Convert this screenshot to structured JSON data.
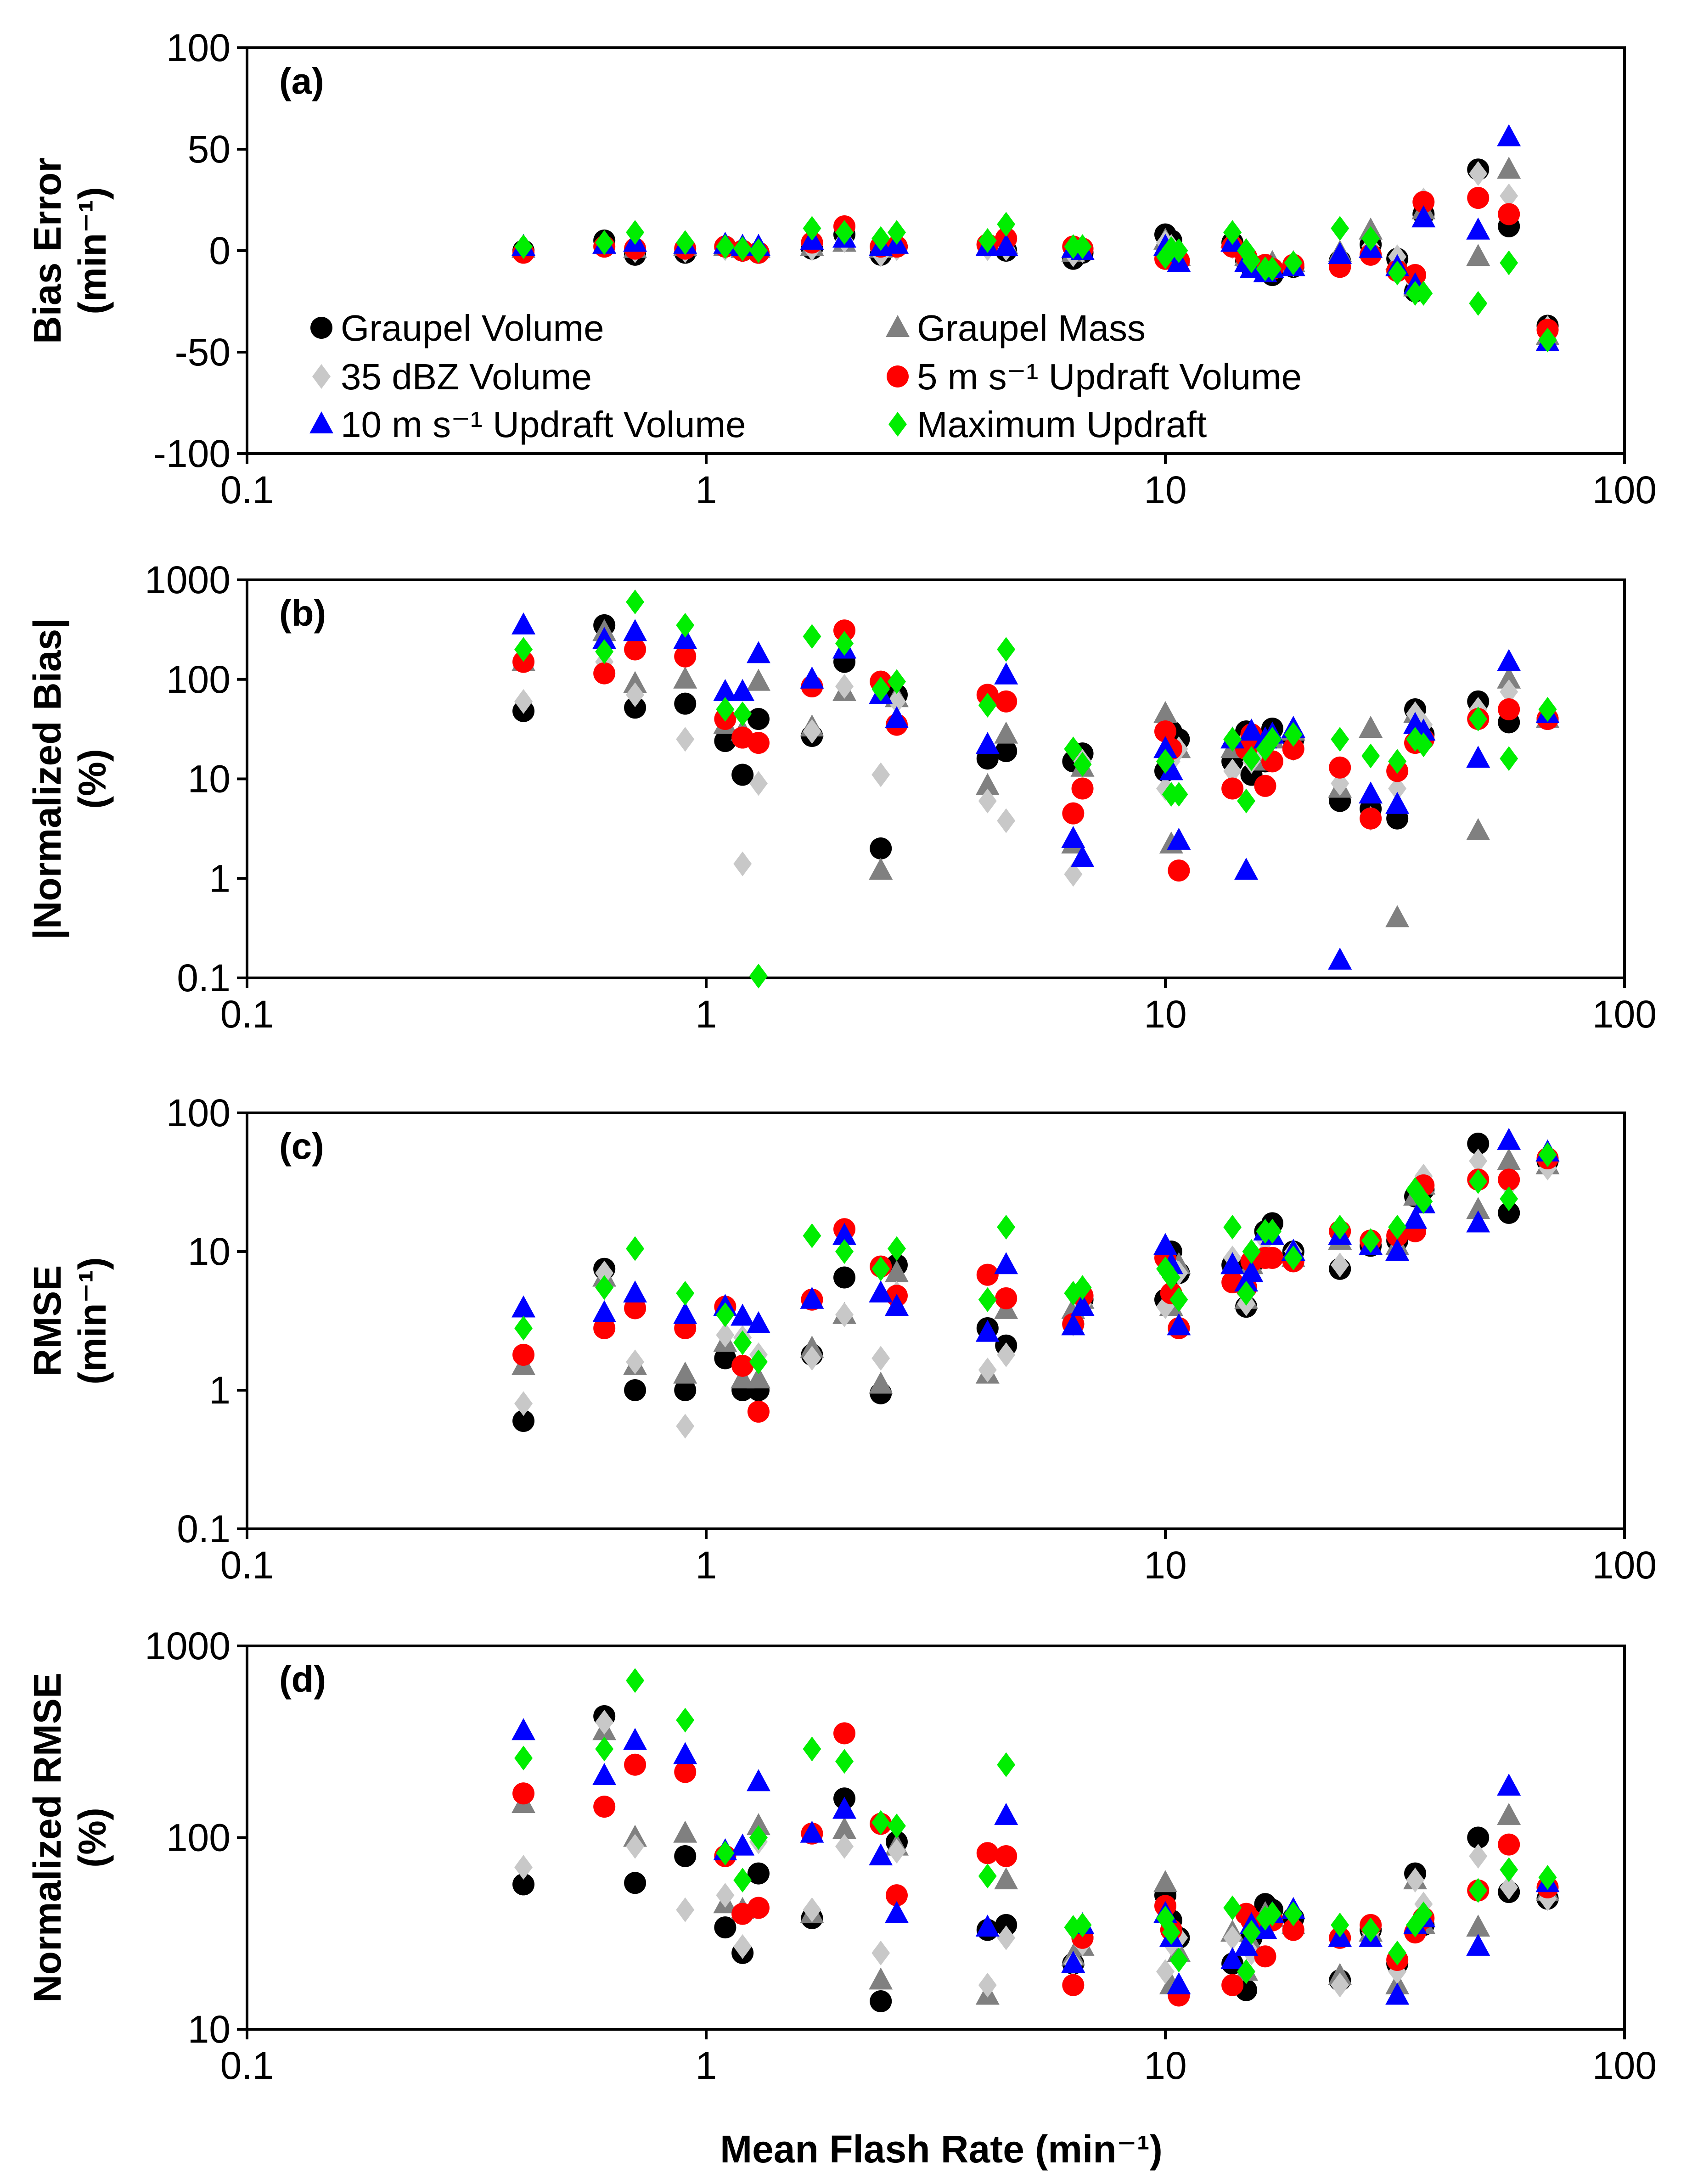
{
  "figure": {
    "x_title": "Mean Flash Rate (min⁻¹)"
  },
  "legend": [
    {
      "name": "Graupel Volume",
      "color": "#000000",
      "marker": "circle"
    },
    {
      "name": "Graupel Mass",
      "color": "#808080",
      "marker": "triangle"
    },
    {
      "name": "35 dBZ Volume",
      "color": "#c8c8c8",
      "marker": "diamond"
    },
    {
      "name": "5 m s⁻¹ Updraft Volume",
      "color": "#ff0000",
      "marker": "circle"
    },
    {
      "name": "10 m s⁻¹ Updraft Volume",
      "color": "#0000ff",
      "marker": "triangle"
    },
    {
      "name": "Maximum Updraft",
      "color": "#00ee00",
      "marker": "diamond"
    }
  ],
  "chart_data": [
    {
      "type": "scatter",
      "panel": "(a)",
      "ylabel": [
        "Bias Error",
        "(min⁻¹)"
      ],
      "xscale": "log",
      "yscale": "linear",
      "xlim": [
        0.1,
        100
      ],
      "ylim": [
        -100,
        100
      ],
      "xticks": [
        0.1,
        1,
        10,
        100
      ],
      "xtick_labels": [
        "0.1",
        "1",
        "10",
        "100"
      ],
      "yticks": [
        -100,
        -50,
        0,
        50,
        100
      ],
      "ytick_labels": [
        "-100",
        "-50",
        "0",
        "50",
        "100"
      ],
      "x": [
        0.4,
        0.6,
        0.7,
        0.9,
        1.1,
        1.2,
        1.3,
        1.7,
        2.0,
        2.4,
        2.6,
        4.1,
        4.5,
        6.3,
        6.6,
        10.0,
        10.3,
        10.7,
        14.0,
        15.0,
        15.4,
        16.5,
        17.1,
        19.0,
        24.0,
        28.0,
        32.0,
        35.0,
        36.5,
        48.0,
        56.0,
        68.0
      ],
      "series": [
        {
          "name": "Graupel Volume",
          "values": [
            0,
            5,
            -2,
            -1,
            2,
            0,
            -1,
            1,
            8,
            -2,
            2,
            3,
            0,
            -4,
            -1,
            8,
            5,
            -5,
            4,
            -5,
            -8,
            -10,
            -12,
            -8,
            -5,
            3,
            -4,
            -20,
            18,
            40,
            12,
            -37
          ]
        },
        {
          "name": "Graupel Mass",
          "values": [
            1,
            3,
            1,
            2,
            2,
            1,
            1,
            2,
            4,
            1,
            3,
            2,
            3,
            -1,
            0,
            5,
            2,
            -3,
            6,
            -3,
            -5,
            -8,
            -6,
            -6,
            -1,
            10,
            -5,
            -18,
            20,
            -3,
            40,
            -42
          ]
        },
        {
          "name": "35 dBZ Volume",
          "values": [
            0,
            4,
            0,
            0,
            1,
            1,
            0,
            1,
            5,
            -2,
            1,
            1,
            1,
            -2,
            0,
            4,
            2,
            -3,
            2,
            -4,
            -6,
            -8,
            -9,
            -7,
            -4,
            2,
            -3,
            -16,
            25,
            38,
            27,
            -38
          ]
        },
        {
          "name": "5 m s⁻¹ Updraft Volume",
          "values": [
            -1,
            2,
            1,
            1,
            2,
            0,
            -1,
            4,
            12,
            2,
            2,
            3,
            6,
            2,
            1,
            -4,
            -3,
            -5,
            2,
            -3,
            -7,
            -7,
            -9,
            -7,
            -8,
            -2,
            -10,
            -12,
            24,
            26,
            18,
            -39
          ]
        },
        {
          "name": "10 m s⁻¹ Updraft Volume",
          "values": [
            2,
            3,
            4,
            3,
            3,
            2,
            2,
            5,
            6,
            2,
            3,
            2,
            2,
            1,
            0,
            2,
            -1,
            -6,
            4,
            -6,
            -9,
            -11,
            -9,
            -8,
            -2,
            1,
            -8,
            -17,
            16,
            10,
            56,
            -45
          ]
        },
        {
          "name": "Maximum Updraft",
          "values": [
            2,
            4,
            9,
            4,
            2,
            1,
            0,
            11,
            9,
            6,
            9,
            5,
            13,
            2,
            2,
            -3,
            1,
            0,
            9,
            0,
            -5,
            -9,
            -9,
            -6,
            11,
            6,
            -11,
            -21,
            -21,
            -26,
            -6,
            -44
          ]
        }
      ]
    },
    {
      "type": "scatter",
      "panel": "(b)",
      "ylabel": [
        "|Normalized Bias|",
        "(%)"
      ],
      "xscale": "log",
      "yscale": "log",
      "xlim": [
        0.1,
        100
      ],
      "ylim": [
        0.1,
        1000
      ],
      "xticks": [
        0.1,
        1,
        10,
        100
      ],
      "xtick_labels": [
        "0.1",
        "1",
        "10",
        "100"
      ],
      "yticks": [
        0.1,
        1,
        10,
        100,
        1000
      ],
      "ytick_labels": [
        "0.1",
        "1",
        "10",
        "100",
        "1000"
      ],
      "x": [
        0.4,
        0.6,
        0.7,
        0.9,
        1.1,
        1.2,
        1.3,
        1.7,
        2.0,
        2.4,
        2.6,
        4.1,
        4.5,
        6.3,
        6.6,
        10.0,
        10.3,
        10.7,
        14.0,
        15.0,
        15.4,
        16.5,
        17.1,
        19.0,
        24.0,
        28.0,
        32.0,
        35.0,
        36.5,
        48.0,
        56.0,
        68.0
      ],
      "series": [
        {
          "name": "Graupel Volume",
          "values": [
            48,
            350,
            52,
            57,
            24,
            11,
            40,
            27,
            150,
            2,
            70,
            16,
            19,
            15,
            18,
            12,
            30,
            25,
            15,
            30,
            11,
            15,
            32,
            25,
            6,
            5,
            4,
            50,
            28,
            60,
            37,
            40
          ]
        },
        {
          "name": "Graupel Mass",
          "values": [
            150,
            300,
            90,
            100,
            35,
            30,
            95,
            33,
            75,
            1.2,
            65,
            8.5,
            28,
            2.2,
            13,
            45,
            2.2,
            20,
            20,
            25,
            20,
            15,
            25,
            30,
            8,
            32,
            0.4,
            45,
            30,
            3,
            100,
            40
          ]
        },
        {
          "name": "35 dBZ Volume",
          "values": [
            60,
            150,
            70,
            25,
            50,
            1.4,
            9,
            30,
            85,
            11,
            60,
            6,
            3.8,
            1.1,
            15,
            8,
            15,
            20,
            12,
            25,
            15,
            18,
            25,
            20,
            9,
            4,
            8,
            45,
            35,
            50,
            75,
            42
          ]
        },
        {
          "name": "5 m s⁻¹ Updraft Volume",
          "values": [
            150,
            115,
            200,
            170,
            40,
            26,
            23,
            85,
            310,
            95,
            35,
            70,
            60,
            4.5,
            8,
            30,
            20,
            1.2,
            8,
            20,
            28,
            8.5,
            15,
            20,
            13,
            4,
            12,
            23,
            25,
            40,
            50,
            40
          ]
        },
        {
          "name": "10 m s⁻¹ Updraft Volume",
          "values": [
            350,
            250,
            300,
            250,
            75,
            75,
            180,
            100,
            200,
            70,
            40,
            22,
            110,
            2.5,
            1.6,
            20,
            12,
            2.4,
            25,
            1.2,
            30,
            25,
            28,
            32,
            0.15,
            7,
            5.5,
            35,
            30,
            16,
            150,
            45
          ]
        },
        {
          "name": "Maximum Updraft",
          "values": [
            200,
            190,
            600,
            350,
            50,
            45,
            0.1,
            270,
            230,
            80,
            95,
            55,
            200,
            20,
            14,
            15,
            7,
            7,
            25,
            6,
            16,
            20,
            25,
            28,
            25,
            17,
            15,
            25,
            22,
            40,
            16,
            50
          ]
        }
      ]
    },
    {
      "type": "scatter",
      "panel": "(c)",
      "ylabel": [
        "RMSE",
        "(min⁻¹)"
      ],
      "xscale": "log",
      "yscale": "log",
      "xlim": [
        0.1,
        100
      ],
      "ylim": [
        0.1,
        100
      ],
      "xticks": [
        0.1,
        1,
        10,
        100
      ],
      "xtick_labels": [
        "0.1",
        "1",
        "10",
        "100"
      ],
      "yticks": [
        0.1,
        1,
        10,
        100
      ],
      "ytick_labels": [
        "0.1",
        "1",
        "10",
        "100"
      ],
      "x": [
        0.4,
        0.6,
        0.7,
        0.9,
        1.1,
        1.2,
        1.3,
        1.7,
        2.0,
        2.4,
        2.6,
        4.1,
        4.5,
        6.3,
        6.6,
        10.0,
        10.3,
        10.7,
        14.0,
        15.0,
        15.4,
        16.5,
        17.1,
        19.0,
        24.0,
        28.0,
        32.0,
        35.0,
        36.5,
        48.0,
        56.0,
        68.0
      ],
      "series": [
        {
          "name": "Graupel Volume",
          "values": [
            0.6,
            7.5,
            1.0,
            1.0,
            1.7,
            1.0,
            1.0,
            1.8,
            6.5,
            0.95,
            8,
            2.8,
            2.1,
            3,
            4.5,
            4.5,
            10,
            7,
            8,
            4,
            8,
            14,
            16,
            10,
            7.5,
            11,
            12,
            25,
            28,
            60,
            19,
            45
          ]
        },
        {
          "name": "Graupel Mass",
          "values": [
            1.5,
            6.5,
            1.5,
            1.3,
            2.2,
            1.2,
            1.2,
            2.0,
            3.5,
            1.1,
            7,
            1.3,
            3.8,
            3.8,
            4.5,
            11,
            4,
            8,
            8,
            4.5,
            8,
            10,
            13,
            9,
            12,
            11,
            11,
            25,
            30,
            20,
            45,
            42
          ]
        },
        {
          "name": "35 dBZ Volume",
          "values": [
            0.8,
            7,
            1.6,
            0.55,
            2.5,
            2.4,
            1.8,
            1.7,
            3.5,
            1.7,
            5,
            1.4,
            1.8,
            3,
            4.2,
            4,
            8,
            7,
            9,
            4.2,
            10,
            12,
            14,
            10,
            8,
            12,
            12,
            28,
            35,
            45,
            30,
            40
          ]
        },
        {
          "name": "5 m s⁻¹ Updraft Volume",
          "values": [
            1.8,
            2.8,
            3.9,
            2.8,
            4,
            1.5,
            0.7,
            4.5,
            14.5,
            7.8,
            4.8,
            6.8,
            4.6,
            3,
            4.8,
            9,
            5,
            2.8,
            6,
            5.5,
            8.5,
            9,
            9,
            8.5,
            14,
            12,
            13,
            14,
            30,
            33,
            33,
            47
          ]
        },
        {
          "name": "10 m s⁻¹ Updraft Volume",
          "values": [
            3.9,
            3.6,
            5,
            3.5,
            4,
            3.4,
            3,
            4.5,
            13,
            5,
            4,
            2.6,
            8,
            2.9,
            4,
            11,
            8,
            2.9,
            8,
            6,
            7,
            14,
            13,
            10,
            13,
            11,
            10,
            17,
            22,
            16,
            63,
            52
          ]
        },
        {
          "name": "Maximum Updraft",
          "values": [
            2.8,
            5.5,
            10.5,
            5,
            3.5,
            2.2,
            1.6,
            13,
            10,
            7.5,
            10.5,
            4.5,
            15,
            5,
            5.5,
            7.5,
            6.5,
            4.5,
            15,
            5,
            10,
            14,
            14,
            9,
            15,
            12,
            15,
            28,
            23,
            32,
            24,
            50
          ]
        }
      ]
    },
    {
      "type": "scatter",
      "panel": "(d)",
      "ylabel": [
        "Normalized RMSE",
        "(%)"
      ],
      "xscale": "log",
      "yscale": "log",
      "xlim": [
        0.1,
        100
      ],
      "ylim": [
        10,
        1000
      ],
      "xticks": [
        0.1,
        1,
        10,
        100
      ],
      "xtick_labels": [
        "0.1",
        "1",
        "10",
        "100"
      ],
      "yticks": [
        10,
        100,
        1000
      ],
      "ytick_labels": [
        "10",
        "100",
        "1000"
      ],
      "x": [
        0.4,
        0.6,
        0.7,
        0.9,
        1.1,
        1.2,
        1.3,
        1.7,
        2.0,
        2.4,
        2.6,
        4.1,
        4.5,
        6.3,
        6.6,
        10.0,
        10.3,
        10.7,
        14.0,
        15.0,
        15.4,
        16.5,
        17.1,
        19.0,
        24.0,
        28.0,
        32.0,
        35.0,
        36.5,
        48.0,
        56.0,
        68.0
      ],
      "series": [
        {
          "name": "Graupel Volume",
          "values": [
            57,
            430,
            58,
            80,
            34,
            25,
            65,
            38,
            160,
            14,
            95,
            33,
            35,
            22,
            30,
            50,
            37,
            30,
            22,
            16,
            30,
            45,
            42,
            38,
            18,
            33,
            22,
            65,
            35,
            100,
            52,
            48
          ]
        },
        {
          "name": "Graupel Mass",
          "values": [
            150,
            360,
            100,
            105,
            45,
            42,
            115,
            40,
            110,
            18,
            90,
            15,
            60,
            24,
            27,
            58,
            17,
            25,
            32,
            20,
            28,
            40,
            38,
            35,
            19,
            32,
            17,
            60,
            35,
            34,
            130,
            52
          ]
        },
        {
          "name": "35 dBZ Volume",
          "values": [
            70,
            400,
            90,
            42,
            50,
            27,
            95,
            42,
            90,
            25,
            85,
            17,
            30,
            22,
            28,
            20,
            28,
            30,
            30,
            20,
            25,
            38,
            40,
            35,
            17,
            32,
            20,
            60,
            45,
            80,
            55,
            48
          ]
        },
        {
          "name": "5 m s⁻¹ Updraft Volume",
          "values": [
            170,
            145,
            240,
            220,
            80,
            40,
            43,
            105,
            350,
            118,
            50,
            83,
            80,
            17,
            30,
            44,
            33,
            15,
            17,
            40,
            37,
            24,
            37,
            33,
            30,
            35,
            23,
            32,
            38,
            53,
            92,
            55
          ]
        },
        {
          "name": "10 m s⁻¹ Updraft Volume",
          "values": [
            360,
            210,
            320,
            270,
            85,
            90,
            195,
            105,
            140,
            80,
            40,
            34,
            130,
            22,
            35,
            40,
            30,
            17,
            23,
            27,
            35,
            33,
            40,
            42,
            30,
            30,
            15,
            35,
            38,
            27,
            185,
            58
          ]
        },
        {
          "name": "Maximum Updraft",
          "values": [
            260,
            290,
            660,
            410,
            83,
            60,
            100,
            290,
            250,
            120,
            115,
            63,
            240,
            34,
            35,
            38,
            32,
            23,
            43,
            20,
            32,
            38,
            40,
            40,
            35,
            33,
            25,
            35,
            40,
            53,
            68,
            62
          ]
        }
      ]
    }
  ]
}
